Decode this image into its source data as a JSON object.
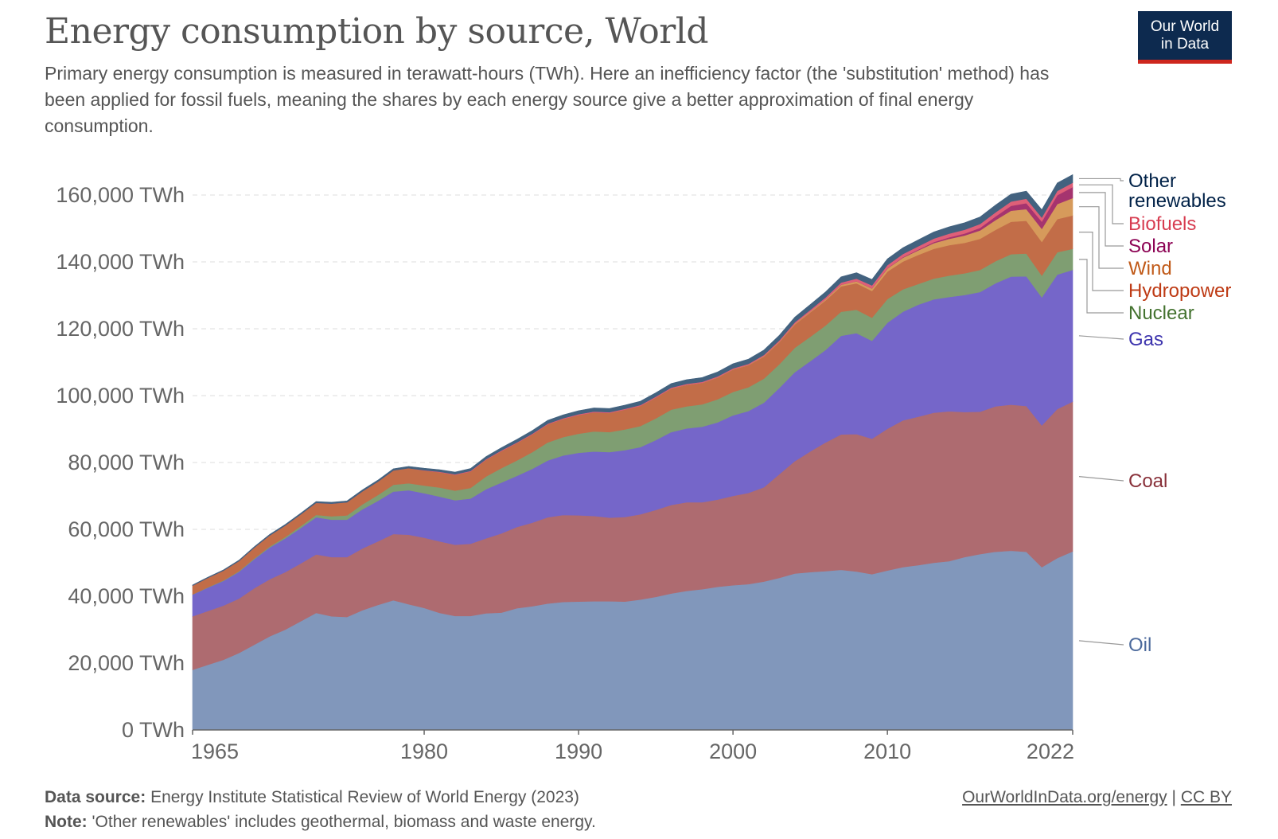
{
  "header": {
    "title": "Energy consumption by source, World",
    "subtitle": "Primary energy consumption is measured in terawatt-hours (TWh). Here an inefficiency factor (the 'substitution' method) has been applied for fossil fuels, meaning the shares by each energy source give a better approximation of final energy consumption.",
    "logo_line1": "Our World",
    "logo_line2": "in Data"
  },
  "footer": {
    "source_label": "Data source:",
    "source_text": "Energy Institute Statistical Review of World Energy (2023)",
    "note_label": "Note:",
    "note_text": "'Other renewables' includes geothermal, biomass and waste energy.",
    "link_text": "OurWorldInData.org/energy",
    "separator": "|",
    "license_text": "CC BY"
  },
  "colors": {
    "logo_bg": "#0d2a4f",
    "logo_accent": "#ce261e",
    "text": "#555555",
    "grid": "#dddddd"
  },
  "chart_data": {
    "type": "area",
    "stacked": true,
    "x": [
      1965,
      1966,
      1967,
      1968,
      1969,
      1970,
      1971,
      1972,
      1973,
      1974,
      1975,
      1976,
      1977,
      1978,
      1979,
      1980,
      1981,
      1982,
      1983,
      1984,
      1985,
      1986,
      1987,
      1988,
      1989,
      1990,
      1991,
      1992,
      1993,
      1994,
      1995,
      1996,
      1997,
      1998,
      1999,
      2000,
      2001,
      2002,
      2003,
      2004,
      2005,
      2006,
      2007,
      2008,
      2009,
      2010,
      2011,
      2012,
      2013,
      2014,
      2015,
      2016,
      2017,
      2018,
      2019,
      2020,
      2021,
      2022
    ],
    "xlim": [
      1965,
      2022
    ],
    "xticks": [
      1965,
      1980,
      1990,
      2000,
      2010,
      2022
    ],
    "xtick_labels": [
      "1965",
      "1980",
      "1990",
      "2000",
      "2010",
      "2022"
    ],
    "ylim": [
      0,
      170000
    ],
    "yticks": [
      0,
      20000,
      40000,
      60000,
      80000,
      100000,
      120000,
      140000,
      160000
    ],
    "ytick_labels": [
      "0 TWh",
      "20,000 TWh",
      "40,000 TWh",
      "60,000 TWh",
      "80,000 TWh",
      "100,000 TWh",
      "120,000 TWh",
      "140,000 TWh",
      "160,000 TWh"
    ],
    "grid": "horizontal-dashed",
    "legend_placement": "right",
    "series": [
      {
        "name": "Oil",
        "color": "#8197bb",
        "label_color": "#4c6a9c",
        "values": [
          18000,
          19500,
          21000,
          23000,
          25500,
          28000,
          30000,
          32500,
          35000,
          34000,
          33800,
          35800,
          37400,
          38800,
          37600,
          36500,
          35000,
          34100,
          34100,
          34900,
          35100,
          36400,
          37000,
          37800,
          38300,
          38400,
          38500,
          38500,
          38400,
          39000,
          39800,
          40800,
          41600,
          42100,
          42800,
          43300,
          43600,
          44400,
          45500,
          46800,
          47200,
          47500,
          47900,
          47400,
          46600,
          47700,
          48700,
          49300,
          50000,
          50500,
          51700,
          52600,
          53300,
          53600,
          53300,
          48700,
          51400,
          53400
        ]
      },
      {
        "name": "Coal",
        "color": "#ae6b70",
        "label_color": "#883039",
        "values": [
          16000,
          16100,
          16200,
          16300,
          16900,
          17100,
          17200,
          17300,
          17500,
          17700,
          17900,
          18500,
          19000,
          19800,
          20800,
          21000,
          21400,
          21300,
          21600,
          22400,
          23700,
          24300,
          25000,
          25800,
          26000,
          25800,
          25500,
          25000,
          25300,
          25500,
          26000,
          26500,
          26500,
          26000,
          26100,
          26700,
          27300,
          28200,
          31000,
          33600,
          36100,
          38500,
          40500,
          41100,
          40500,
          42400,
          43900,
          44400,
          44900,
          44800,
          43400,
          42600,
          43500,
          43700,
          43600,
          42400,
          44600,
          44800
        ]
      },
      {
        "name": "Gas",
        "color": "#7566c9",
        "label_color": "#3e35ae",
        "values": [
          6500,
          7000,
          7400,
          8000,
          8700,
          9500,
          10100,
          10600,
          11100,
          11200,
          11200,
          11700,
          12100,
          12700,
          13300,
          13300,
          13400,
          13300,
          13500,
          14700,
          15200,
          15300,
          16100,
          17000,
          17800,
          18700,
          19300,
          19600,
          20000,
          20100,
          20900,
          21800,
          22100,
          22600,
          23100,
          24100,
          24500,
          25300,
          25800,
          26600,
          27000,
          27700,
          29500,
          30200,
          29300,
          31700,
          32500,
          33500,
          33900,
          34200,
          35000,
          35800,
          36800,
          38300,
          38800,
          38300,
          40200,
          39400
        ]
      },
      {
        "name": "Nuclear",
        "color": "#7f9e72",
        "label_color": "#43722f",
        "values": [
          70,
          100,
          150,
          200,
          250,
          300,
          420,
          570,
          730,
          1000,
          1290,
          1470,
          1760,
          2030,
          2100,
          2300,
          2700,
          2900,
          3200,
          3800,
          4300,
          4600,
          5000,
          5400,
          5500,
          5700,
          6000,
          6000,
          6200,
          6300,
          6500,
          6700,
          6600,
          6700,
          6900,
          7000,
          7100,
          7200,
          7100,
          7300,
          7300,
          7300,
          7200,
          7000,
          6900,
          7100,
          6700,
          6200,
          6200,
          6400,
          6500,
          6600,
          6600,
          6700,
          6800,
          6500,
          6700,
          6300
        ]
      },
      {
        "name": "Hydropower",
        "color": "#c26d48",
        "label_color": "#be3b15",
        "values": [
          2600,
          2800,
          2900,
          3000,
          3200,
          3300,
          3400,
          3500,
          3600,
          3800,
          3900,
          3900,
          4000,
          4300,
          4500,
          4500,
          4600,
          4700,
          4900,
          5000,
          5100,
          5200,
          5300,
          5400,
          5400,
          5600,
          5700,
          5700,
          5900,
          6000,
          6200,
          6300,
          6400,
          6400,
          6500,
          6700,
          6600,
          6600,
          6600,
          7000,
          7300,
          7500,
          7600,
          7900,
          8000,
          8200,
          8300,
          8700,
          8900,
          9100,
          9100,
          9300,
          9400,
          9700,
          9800,
          10100,
          9900,
          10000
        ]
      },
      {
        "name": "Wind",
        "color": "#d69a5b",
        "label_color": "#c05917",
        "values": [
          0,
          0,
          0,
          0,
          0,
          0,
          0,
          0,
          0,
          0,
          0,
          0,
          0,
          0,
          0,
          0,
          0,
          0,
          0,
          0,
          0,
          0,
          0,
          0,
          0,
          10,
          10,
          20,
          20,
          30,
          40,
          40,
          50,
          60,
          80,
          100,
          120,
          160,
          190,
          230,
          280,
          360,
          460,
          600,
          750,
          930,
          1150,
          1350,
          1700,
          1900,
          2200,
          2500,
          2900,
          3300,
          3500,
          3900,
          4500,
          5200
        ]
      },
      {
        "name": "Solar",
        "color": "#a5346f",
        "label_color": "#8c0354",
        "values": [
          0,
          0,
          0,
          0,
          0,
          0,
          0,
          0,
          0,
          0,
          0,
          0,
          0,
          0,
          0,
          0,
          0,
          0,
          0,
          0,
          0,
          0,
          0,
          0,
          0,
          0,
          0,
          0,
          0,
          0,
          0,
          0,
          0,
          0,
          0,
          0,
          0,
          0,
          0,
          0,
          0,
          10,
          20,
          30,
          50,
          90,
          160,
          240,
          320,
          460,
          590,
          780,
          1110,
          1460,
          1780,
          2170,
          2640,
          3300
        ]
      },
      {
        "name": "Biofuels",
        "color": "#df5f78",
        "label_color": "#d73c50",
        "values": [
          0,
          0,
          0,
          0,
          0,
          0,
          0,
          0,
          0,
          0,
          0,
          0,
          0,
          0,
          0,
          100,
          140,
          160,
          170,
          190,
          200,
          200,
          210,
          220,
          220,
          220,
          230,
          230,
          230,
          240,
          250,
          260,
          270,
          270,
          270,
          270,
          280,
          310,
          360,
          390,
          450,
          540,
          650,
          790,
          870,
          940,
          940,
          980,
          1040,
          1110,
          1140,
          1150,
          1200,
          1280,
          1320,
          1210,
          1280,
          1300
        ]
      },
      {
        "name": "Other renewables",
        "color": "#43627f",
        "label_color": "#002147",
        "values": [
          200,
          220,
          240,
          260,
          280,
          300,
          330,
          360,
          380,
          400,
          420,
          440,
          460,
          500,
          540,
          580,
          620,
          670,
          720,
          780,
          840,
          900,
          940,
          980,
          1020,
          1050,
          1080,
          1100,
          1120,
          1150,
          1180,
          1220,
          1260,
          1290,
          1330,
          1380,
          1420,
          1460,
          1500,
          1550,
          1600,
          1650,
          1700,
          1740,
          1780,
          1830,
          1880,
          1930,
          1980,
          2030,
          2080,
          2130,
          2180,
          2230,
          2280,
          2330,
          2380,
          2400
        ]
      }
    ]
  }
}
